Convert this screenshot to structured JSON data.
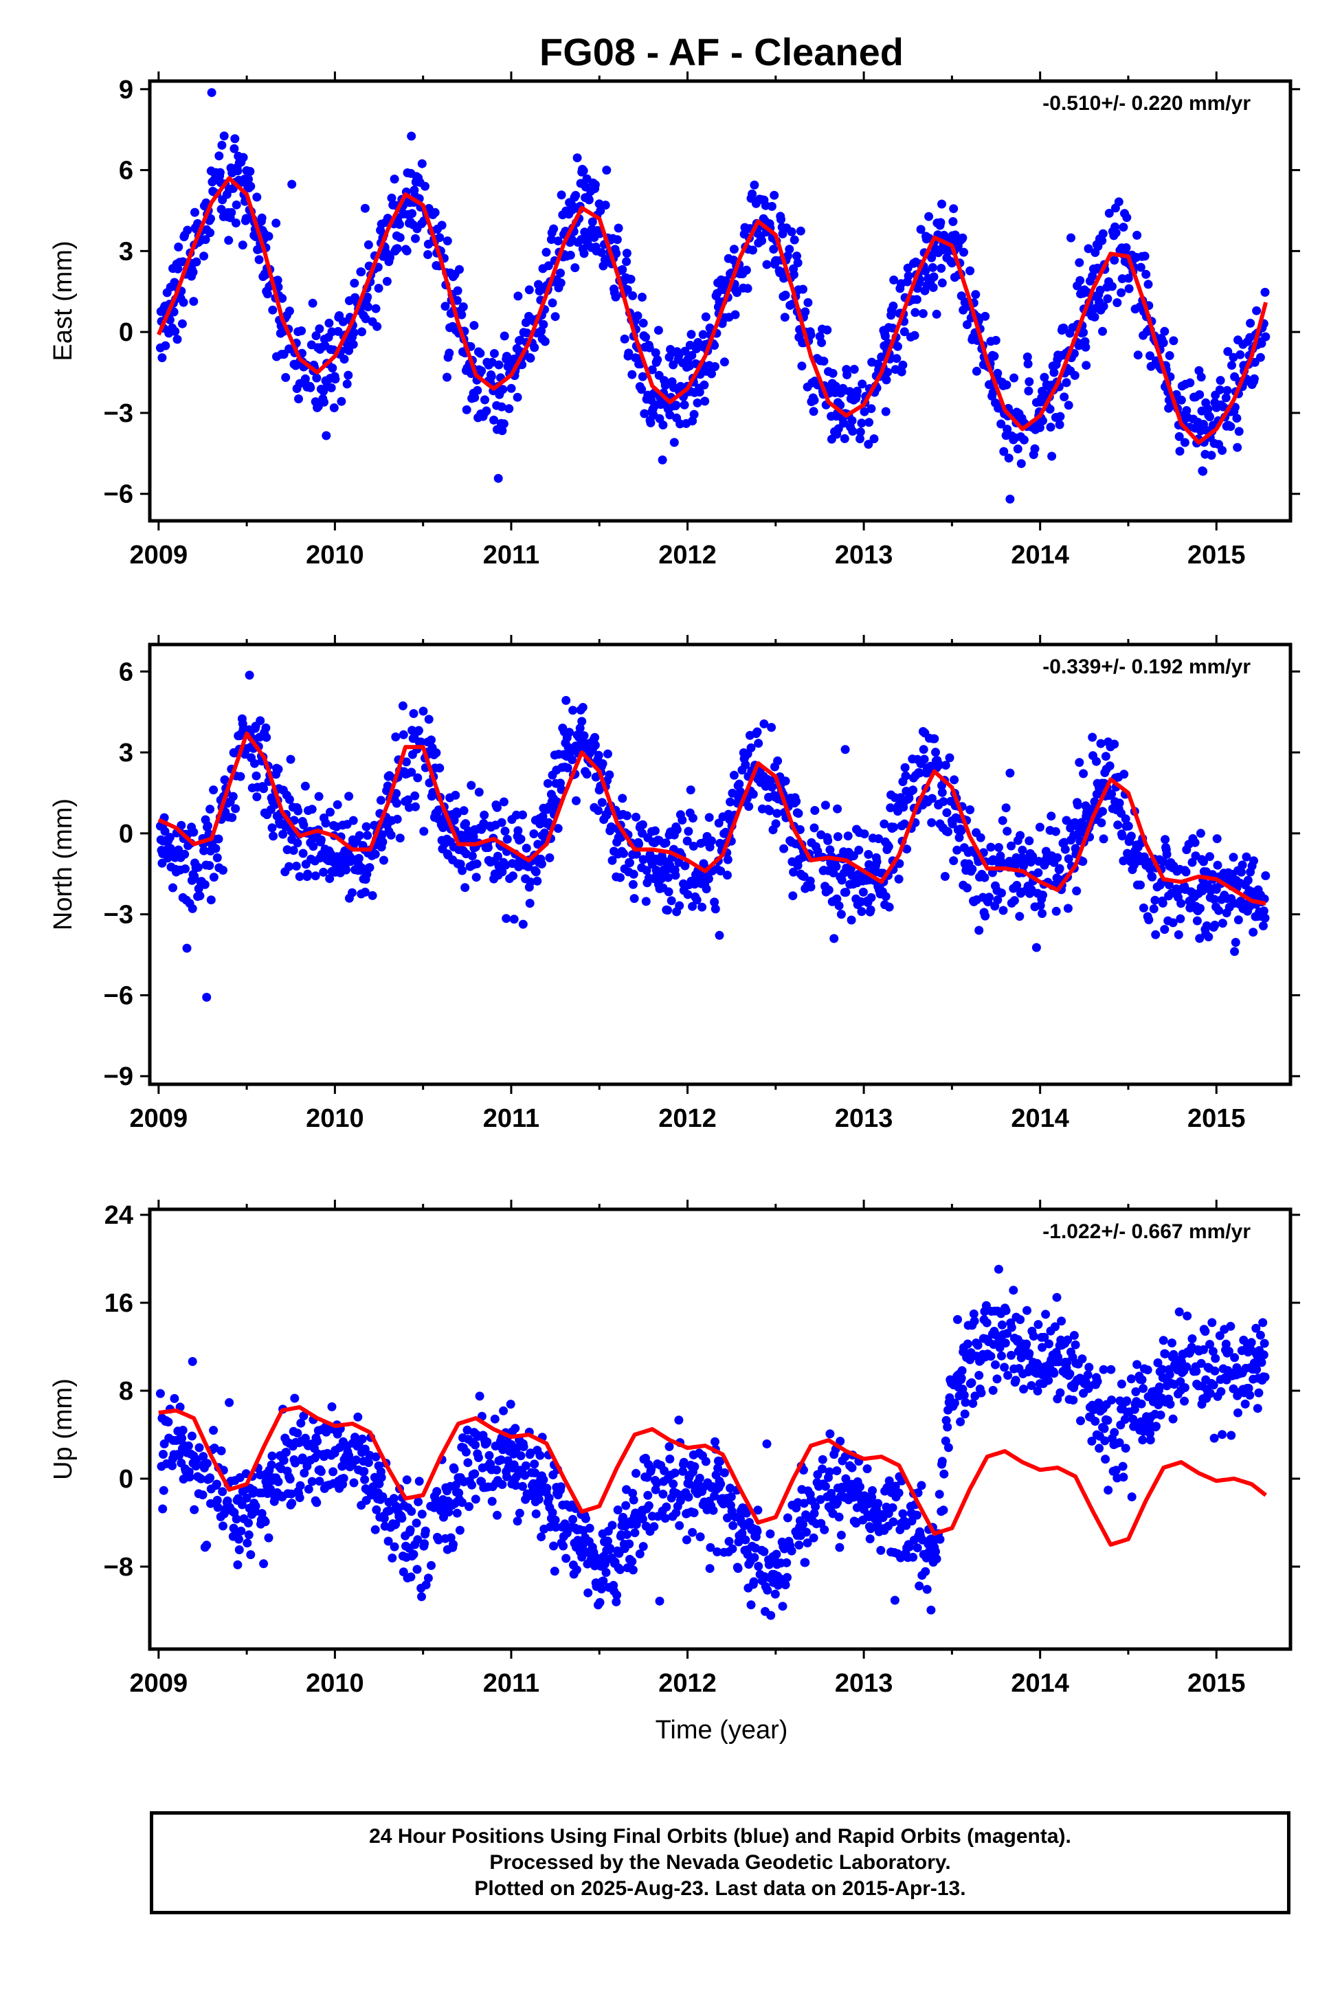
{
  "title": "FG08  - AF - Cleaned",
  "xlabel": "Time (year)",
  "footer": {
    "line1": "24 Hour Positions Using Final Orbits (blue) and Rapid Orbits (magenta).",
    "line2": "Processed by the Nevada Geodetic Laboratory.",
    "line3": "Plotted on 2025-Aug-23. Last data on 2015-Apr-13."
  },
  "colors": {
    "points": "#0000ff",
    "model": "#ff0000",
    "axis": "#000000"
  },
  "chart_data": [
    {
      "type": "scatter",
      "ylabel": "East (mm)",
      "rate_label": "-0.510+/- 0.220 mm/yr",
      "xlim": [
        2008.95,
        2015.42
      ],
      "ylim": [
        -7,
        9.3
      ],
      "xticks": [
        2009,
        2010,
        2011,
        2012,
        2013,
        2014,
        2015
      ],
      "yticks": [
        -6,
        -3,
        0,
        3,
        6,
        9
      ],
      "grid": false,
      "series": [
        {
          "kind": "points",
          "x": [
            2009.0,
            2009.1,
            2009.2,
            2009.3,
            2009.4,
            2009.5,
            2009.6,
            2009.7,
            2009.8,
            2009.9,
            2010.0,
            2010.1,
            2010.2,
            2010.3,
            2010.4,
            2010.5,
            2010.6,
            2010.7,
            2010.8,
            2010.9,
            2011.0,
            2011.1,
            2011.2,
            2011.3,
            2011.4,
            2011.5,
            2011.6,
            2011.7,
            2011.8,
            2011.9,
            2012.0,
            2012.1,
            2012.2,
            2012.3,
            2012.4,
            2012.5,
            2012.6,
            2012.7,
            2012.8,
            2012.9,
            2013.0,
            2013.1,
            2013.2,
            2013.3,
            2013.4,
            2013.5,
            2013.6,
            2013.7,
            2013.8,
            2013.9,
            2014.0,
            2014.1,
            2014.2,
            2014.3,
            2014.4,
            2014.5,
            2014.6,
            2014.7,
            2014.8,
            2014.9,
            2015.0,
            2015.1,
            2015.2,
            2015.3
          ],
          "y": [
            0.2,
            1.6,
            3.0,
            4.6,
            5.6,
            5.2,
            3.0,
            0.5,
            -1.2,
            -1.5,
            -1.0,
            0.2,
            1.8,
            3.6,
            4.9,
            4.8,
            2.8,
            0.3,
            -1.6,
            -2.0,
            -1.6,
            -0.5,
            1.2,
            3.2,
            4.5,
            4.3,
            2.4,
            0.0,
            -1.8,
            -2.5,
            -2.0,
            -0.8,
            0.9,
            2.7,
            4.0,
            3.6,
            1.6,
            -0.8,
            -2.4,
            -3.0,
            -2.6,
            -1.5,
            0.2,
            2.0,
            3.3,
            3.2,
            1.3,
            -1.0,
            -2.8,
            -3.5,
            -3.0,
            -1.8,
            -0.2,
            1.5,
            2.8,
            2.9,
            1.0,
            -1.2,
            -3.2,
            -4.0,
            -3.5,
            -2.4,
            -1.0,
            0.6
          ]
        },
        {
          "kind": "model",
          "x": [
            2009.0,
            2009.1,
            2009.2,
            2009.3,
            2009.4,
            2009.5,
            2009.6,
            2009.7,
            2009.8,
            2009.9,
            2010.0,
            2010.1,
            2010.2,
            2010.3,
            2010.4,
            2010.5,
            2010.6,
            2010.7,
            2010.8,
            2010.9,
            2011.0,
            2011.1,
            2011.2,
            2011.3,
            2011.4,
            2011.5,
            2011.6,
            2011.7,
            2011.8,
            2011.9,
            2012.0,
            2012.1,
            2012.2,
            2012.3,
            2012.4,
            2012.5,
            2012.6,
            2012.7,
            2012.8,
            2012.9,
            2013.0,
            2013.1,
            2013.2,
            2013.3,
            2013.4,
            2013.5,
            2013.6,
            2013.7,
            2013.8,
            2013.9,
            2014.0,
            2014.1,
            2014.2,
            2014.3,
            2014.4,
            2014.5,
            2014.6,
            2014.7,
            2014.8,
            2014.9,
            2015.0,
            2015.1,
            2015.2,
            2015.28
          ],
          "y": [
            -0.1,
            1.4,
            3.2,
            4.8,
            5.7,
            5.1,
            3.0,
            0.5,
            -1.0,
            -1.5,
            -0.9,
            0.4,
            2.1,
            3.8,
            5.1,
            4.7,
            2.7,
            0.3,
            -1.6,
            -2.1,
            -1.6,
            -0.4,
            1.4,
            3.3,
            4.6,
            4.2,
            2.2,
            -0.1,
            -2.0,
            -2.6,
            -2.1,
            -0.9,
            0.9,
            2.8,
            4.1,
            3.6,
            1.5,
            -0.9,
            -2.6,
            -3.1,
            -2.7,
            -1.5,
            0.3,
            2.1,
            3.5,
            3.2,
            1.2,
            -1.1,
            -2.9,
            -3.6,
            -3.1,
            -1.9,
            -0.2,
            1.6,
            2.9,
            2.8,
            0.9,
            -1.4,
            -3.4,
            -4.1,
            -3.6,
            -2.5,
            -0.9,
            1.1
          ]
        }
      ]
    },
    {
      "type": "scatter",
      "ylabel": "North (mm)",
      "rate_label": "-0.339+/- 0.192 mm/yr",
      "xlim": [
        2008.95,
        2015.42
      ],
      "ylim": [
        -9.3,
        7
      ],
      "xticks": [
        2009,
        2010,
        2011,
        2012,
        2013,
        2014,
        2015
      ],
      "yticks": [
        -9,
        -6,
        -3,
        0,
        3,
        6
      ],
      "grid": false,
      "series": [
        {
          "kind": "points",
          "x": [
            2009.0,
            2009.1,
            2009.2,
            2009.3,
            2009.4,
            2009.5,
            2009.6,
            2009.7,
            2009.8,
            2009.9,
            2010.0,
            2010.1,
            2010.2,
            2010.3,
            2010.4,
            2010.5,
            2010.6,
            2010.7,
            2010.8,
            2010.9,
            2011.0,
            2011.1,
            2011.2,
            2011.3,
            2011.4,
            2011.5,
            2011.6,
            2011.7,
            2011.8,
            2011.9,
            2012.0,
            2012.1,
            2012.2,
            2012.3,
            2012.4,
            2012.5,
            2012.6,
            2012.7,
            2012.8,
            2012.9,
            2013.0,
            2013.1,
            2013.2,
            2013.3,
            2013.4,
            2013.5,
            2013.6,
            2013.7,
            2013.8,
            2013.9,
            2014.0,
            2014.1,
            2014.2,
            2014.3,
            2014.4,
            2014.5,
            2014.6,
            2014.7,
            2014.8,
            2014.9,
            2015.0,
            2015.1,
            2015.2,
            2015.3
          ],
          "y": [
            0.4,
            -0.8,
            -1.6,
            -0.8,
            1.6,
            3.8,
            2.6,
            0.6,
            -0.2,
            0.0,
            -0.3,
            -1.0,
            -1.2,
            0.8,
            2.8,
            3.0,
            1.0,
            -0.5,
            -0.6,
            -0.4,
            -0.9,
            -1.2,
            0.2,
            2.6,
            3.4,
            2.0,
            0.0,
            -0.8,
            -0.9,
            -1.0,
            -1.3,
            -1.6,
            -0.6,
            1.6,
            2.6,
            1.8,
            -0.2,
            -1.0,
            -1.2,
            -1.4,
            -1.6,
            -1.4,
            0.4,
            2.2,
            2.2,
            0.8,
            -1.0,
            -1.3,
            -1.4,
            -1.5,
            -1.8,
            -1.6,
            -0.4,
            1.6,
            2.0,
            0.4,
            -1.6,
            -2.0,
            -2.2,
            -2.0,
            -2.3,
            -2.3,
            -2.0,
            -2.4
          ]
        },
        {
          "kind": "model",
          "x": [
            2009.0,
            2009.1,
            2009.2,
            2009.3,
            2009.4,
            2009.5,
            2009.6,
            2009.7,
            2009.8,
            2009.9,
            2010.0,
            2010.1,
            2010.2,
            2010.3,
            2010.4,
            2010.5,
            2010.6,
            2010.7,
            2010.8,
            2010.9,
            2011.0,
            2011.1,
            2011.2,
            2011.3,
            2011.4,
            2011.5,
            2011.6,
            2011.7,
            2011.8,
            2011.9,
            2012.0,
            2012.1,
            2012.2,
            2012.3,
            2012.4,
            2012.5,
            2012.6,
            2012.7,
            2012.8,
            2012.9,
            2013.0,
            2013.1,
            2013.2,
            2013.3,
            2013.4,
            2013.5,
            2013.6,
            2013.7,
            2013.8,
            2013.9,
            2014.0,
            2014.1,
            2014.2,
            2014.3,
            2014.4,
            2014.5,
            2014.6,
            2014.7,
            2014.8,
            2014.9,
            2015.0,
            2015.1,
            2015.2,
            2015.28
          ],
          "y": [
            0.5,
            0.2,
            -0.4,
            -0.2,
            1.8,
            3.7,
            2.8,
            0.8,
            -0.1,
            0.1,
            -0.1,
            -0.6,
            -0.6,
            1.1,
            3.2,
            3.2,
            1.2,
            -0.4,
            -0.4,
            -0.2,
            -0.6,
            -1.0,
            -0.4,
            1.4,
            3.0,
            2.3,
            0.4,
            -0.6,
            -0.6,
            -0.7,
            -1.0,
            -1.4,
            -0.8,
            1.0,
            2.6,
            2.1,
            0.2,
            -1.0,
            -0.9,
            -1.0,
            -1.4,
            -1.8,
            -0.8,
            1.0,
            2.3,
            1.7,
            -0.1,
            -1.3,
            -1.3,
            -1.4,
            -1.8,
            -2.1,
            -1.2,
            0.6,
            2.0,
            1.5,
            -0.4,
            -1.7,
            -1.8,
            -1.6,
            -1.7,
            -2.1,
            -2.5,
            -2.6
          ]
        }
      ]
    },
    {
      "type": "scatter",
      "ylabel": "Up (mm)",
      "rate_label": "-1.022+/- 0.667 mm/yr",
      "xlim": [
        2008.95,
        2015.42
      ],
      "ylim": [
        -15.5,
        24.5
      ],
      "xticks": [
        2009,
        2010,
        2011,
        2012,
        2013,
        2014,
        2015
      ],
      "yticks": [
        -8,
        0,
        8,
        16,
        24
      ],
      "grid": false,
      "series": [
        {
          "kind": "points",
          "x": [
            2009.0,
            2009.1,
            2009.2,
            2009.3,
            2009.4,
            2009.5,
            2009.6,
            2009.7,
            2009.8,
            2009.9,
            2010.0,
            2010.1,
            2010.2,
            2010.3,
            2010.4,
            2010.5,
            2010.6,
            2010.7,
            2010.8,
            2010.9,
            2011.0,
            2011.1,
            2011.2,
            2011.3,
            2011.4,
            2011.5,
            2011.6,
            2011.7,
            2011.8,
            2011.9,
            2012.0,
            2012.1,
            2012.2,
            2012.3,
            2012.4,
            2012.5,
            2012.6,
            2012.7,
            2012.8,
            2012.9,
            2013.0,
            2013.1,
            2013.2,
            2013.3,
            2013.4,
            2013.5,
            2013.6,
            2013.7,
            2013.8,
            2013.9,
            2014.0,
            2014.1,
            2014.2,
            2014.3,
            2014.4,
            2014.5,
            2014.6,
            2014.7,
            2014.8,
            2014.9,
            2015.0,
            2015.1,
            2015.2,
            2015.3
          ],
          "y": [
            4.0,
            2.5,
            1.0,
            -1.0,
            -2.5,
            -3.5,
            -2.0,
            0.5,
            2.0,
            2.0,
            1.5,
            1.0,
            -0.5,
            -3.0,
            -5.5,
            -6.0,
            -4.0,
            0.0,
            2.0,
            2.5,
            1.5,
            0.0,
            -1.5,
            -3.5,
            -6.5,
            -8.0,
            -7.0,
            -4.0,
            -1.0,
            0.0,
            -0.5,
            -1.5,
            -2.5,
            -4.5,
            -7.0,
            -8.5,
            -6.5,
            -3.5,
            -1.0,
            -1.0,
            -2.0,
            -3.0,
            -4.0,
            -5.5,
            -7.0,
            8.0,
            11.0,
            12.5,
            13.0,
            12.0,
            11.5,
            11.0,
            9.5,
            6.5,
            4.5,
            5.0,
            6.5,
            8.5,
            9.5,
            10.0,
            9.5,
            9.5,
            10.0,
            10.5
          ]
        },
        {
          "kind": "model",
          "x": [
            2009.0,
            2009.1,
            2009.2,
            2009.3,
            2009.4,
            2009.5,
            2009.6,
            2009.7,
            2009.8,
            2009.9,
            2010.0,
            2010.1,
            2010.2,
            2010.3,
            2010.4,
            2010.5,
            2010.6,
            2010.7,
            2010.8,
            2010.9,
            2011.0,
            2011.1,
            2011.2,
            2011.3,
            2011.4,
            2011.5,
            2011.6,
            2011.7,
            2011.8,
            2011.9,
            2012.0,
            2012.1,
            2012.2,
            2012.3,
            2012.4,
            2012.5,
            2012.6,
            2012.7,
            2012.8,
            2012.9,
            2013.0,
            2013.1,
            2013.2,
            2013.3,
            2013.4,
            2013.5,
            2013.6,
            2013.7,
            2013.8,
            2013.9,
            2014.0,
            2014.1,
            2014.2,
            2014.3,
            2014.4,
            2014.5,
            2014.6,
            2014.7,
            2014.8,
            2014.9,
            2015.0,
            2015.1,
            2015.2,
            2015.28
          ],
          "y": [
            6.0,
            6.2,
            5.5,
            2.0,
            -1.0,
            -0.5,
            3.0,
            6.2,
            6.5,
            5.5,
            4.8,
            5.0,
            4.2,
            1.0,
            -1.8,
            -1.5,
            2.0,
            5.0,
            5.5,
            4.5,
            3.8,
            4.0,
            3.2,
            0.0,
            -3.0,
            -2.5,
            1.0,
            4.0,
            4.5,
            3.5,
            2.8,
            3.0,
            2.2,
            -1.0,
            -4.0,
            -3.5,
            0.0,
            3.0,
            3.5,
            2.5,
            1.8,
            2.0,
            1.2,
            -2.0,
            -5.0,
            -4.5,
            -1.0,
            2.0,
            2.5,
            1.5,
            0.8,
            1.0,
            0.2,
            -3.0,
            -6.0,
            -5.5,
            -2.0,
            1.0,
            1.5,
            0.5,
            -0.2,
            0.0,
            -0.5,
            -1.5
          ]
        }
      ]
    }
  ]
}
